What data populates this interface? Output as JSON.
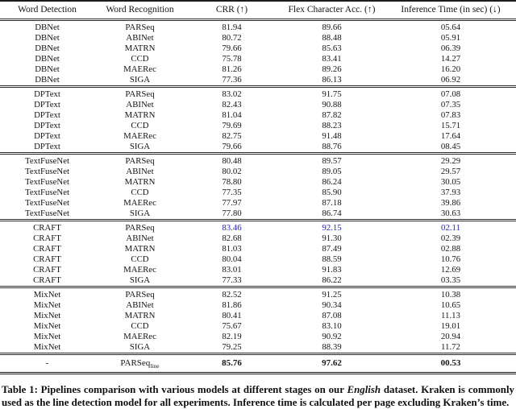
{
  "table": {
    "columns": [
      "Word Detection",
      "Word Recognition",
      "CRR (↑)",
      "Flex Character Acc. (↑)",
      "Inference Time (in sec) (↓)"
    ],
    "accent_color": "#2222cc",
    "sections": [
      {
        "detector": "DBNet",
        "rows": [
          {
            "cells": [
              "DBNet",
              "PARSeq",
              "81.94",
              "89.66",
              "05.64"
            ]
          },
          {
            "cells": [
              "DBNet",
              "ABINet",
              "80.72",
              "88.48",
              "05.91"
            ]
          },
          {
            "cells": [
              "DBNet",
              "MATRN",
              "79.66",
              "85.63",
              "06.39"
            ]
          },
          {
            "cells": [
              "DBNet",
              "CCD",
              "75.78",
              "83.41",
              "14.27"
            ]
          },
          {
            "cells": [
              "DBNet",
              "MAERec",
              "81.26",
              "89.26",
              "16.20"
            ]
          },
          {
            "cells": [
              "DBNet",
              "SIGA",
              "77.36",
              "86.13",
              "06.92"
            ]
          }
        ]
      },
      {
        "detector": "DPText",
        "rows": [
          {
            "cells": [
              "DPText",
              "PARSeq",
              "83.02",
              "91.75",
              "07.08"
            ]
          },
          {
            "cells": [
              "DPText",
              "ABINet",
              "82.43",
              "90.88",
              "07.35"
            ]
          },
          {
            "cells": [
              "DPText",
              "MATRN",
              "81.04",
              "87.82",
              "07.83"
            ]
          },
          {
            "cells": [
              "DPText",
              "CCD",
              "79.69",
              "88.23",
              "15.71"
            ]
          },
          {
            "cells": [
              "DPText",
              "MAERec",
              "82.75",
              "91.48",
              "17.64"
            ]
          },
          {
            "cells": [
              "DPText",
              "SIGA",
              "79.66",
              "88.76",
              "08.45"
            ]
          }
        ]
      },
      {
        "detector": "TextFuseNet",
        "rows": [
          {
            "cells": [
              "TextFuseNet",
              "PARSeq",
              "80.48",
              "89.57",
              "29.29"
            ]
          },
          {
            "cells": [
              "TextFuseNet",
              "ABINet",
              "80.02",
              "89.05",
              "29.57"
            ]
          },
          {
            "cells": [
              "TextFuseNet",
              "MATRN",
              "78.80",
              "86.24",
              "30.05"
            ]
          },
          {
            "cells": [
              "TextFuseNet",
              "CCD",
              "77.35",
              "85.90",
              "37.93"
            ]
          },
          {
            "cells": [
              "TextFuseNet",
              "MAERec",
              "77.97",
              "87.18",
              "39.86"
            ]
          },
          {
            "cells": [
              "TextFuseNet",
              "SIGA",
              "77.80",
              "86.74",
              "30.63"
            ]
          }
        ]
      },
      {
        "detector": "CRAFT",
        "rows": [
          {
            "cells": [
              "CRAFT",
              "PARSeq",
              "83.46",
              "92.15",
              "02.11"
            ],
            "accent": true
          },
          {
            "cells": [
              "CRAFT",
              "ABINet",
              "82.68",
              "91.30",
              "02.39"
            ]
          },
          {
            "cells": [
              "CRAFT",
              "MATRN",
              "81.03",
              "87.49",
              "02.88"
            ]
          },
          {
            "cells": [
              "CRAFT",
              "CCD",
              "80.04",
              "88.59",
              "10.76"
            ]
          },
          {
            "cells": [
              "CRAFT",
              "MAERec",
              "83.01",
              "91.83",
              "12.69"
            ]
          },
          {
            "cells": [
              "CRAFT",
              "SIGA",
              "77.33",
              "86.22",
              "03.35"
            ]
          }
        ]
      },
      {
        "detector": "MixNet",
        "rows": [
          {
            "cells": [
              "MixNet",
              "PARSeq",
              "82.52",
              "91.25",
              "10.38"
            ]
          },
          {
            "cells": [
              "MixNet",
              "ABINet",
              "81.86",
              "90.34",
              "10.65"
            ]
          },
          {
            "cells": [
              "MixNet",
              "MATRN",
              "80.41",
              "87.08",
              "11.13"
            ]
          },
          {
            "cells": [
              "MixNet",
              "CCD",
              "75.67",
              "83.10",
              "19.01"
            ]
          },
          {
            "cells": [
              "MixNet",
              "MAERec",
              "82.19",
              "90.92",
              "20.94"
            ]
          },
          {
            "cells": [
              "MixNet",
              "SIGA",
              "79.25",
              "88.39",
              "11.72"
            ]
          }
        ]
      }
    ],
    "final_row": {
      "cells": [
        "-",
        "PARSeq",
        "85.76",
        "97.62",
        "00.53"
      ],
      "recognition_subscript": "line"
    }
  },
  "caption": {
    "prefix": "Table 1: Pipelines comparison with various models at different stages on our ",
    "emphasis": "English",
    "suffix": " dataset. Kraken is commonly used as the line detection model for all experiments. Inference time is calculated per page excluding Kraken’s time."
  }
}
